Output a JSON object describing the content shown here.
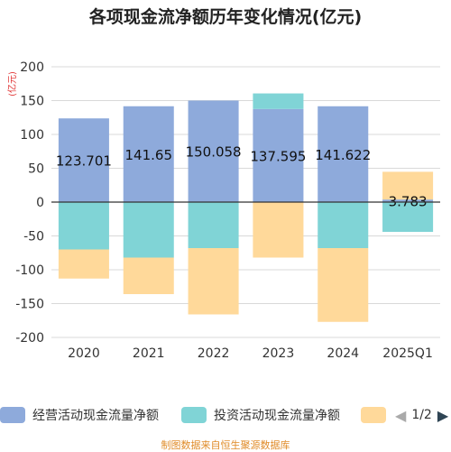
{
  "chart_data": {
    "type": "bar",
    "stacked": true,
    "title": "各项现金流净额历年变化情况(亿元)",
    "ylabel": "(亿元)",
    "ylim": [
      -200,
      200
    ],
    "yticks": [
      -200,
      -150,
      -100,
      -50,
      0,
      50,
      100,
      150,
      200
    ],
    "grid": true,
    "categories": [
      "2020",
      "2021",
      "2022",
      "2023",
      "2024",
      "2025Q1"
    ],
    "series": [
      {
        "name": "经营活动现金流量净额",
        "color": "#8eaadb",
        "values": [
          123.701,
          141.65,
          150.058,
          137.595,
          141.622,
          3.783
        ],
        "labels": [
          "123.701",
          "141.65",
          "150.058",
          "137.595",
          "141.622",
          "3.783"
        ]
      },
      {
        "name": "投资活动现金流量净额",
        "color": "#80d4d6",
        "values": [
          -70,
          -82,
          -68,
          23,
          -68,
          -44
        ]
      },
      {
        "name": "",
        "color": "#ffd99a",
        "values": [
          -43,
          -54,
          -98,
          -82,
          -109,
          41
        ]
      }
    ],
    "legend_position": "bottom",
    "pager": "1/2"
  },
  "footer": "制图数据来自恒生聚源数据库"
}
